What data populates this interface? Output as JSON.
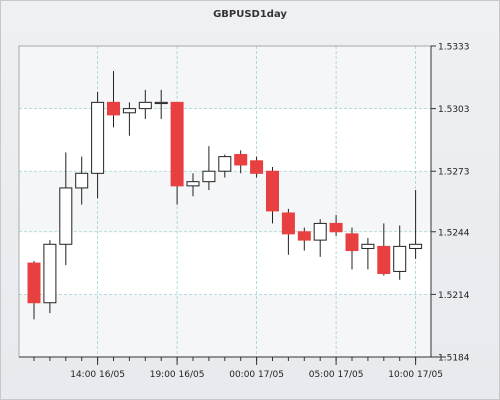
{
  "chart_data": {
    "type": "candlestick",
    "title": "GBPUSD1day",
    "xlabel": "",
    "ylabel": "",
    "ylim": [
      1.5184,
      1.5333
    ],
    "yticks": [
      "1.5184",
      "1.5214",
      "1.5244",
      "1.5273",
      "1.5303",
      "1.5333"
    ],
    "xticks": [
      "14:00 16/05",
      "19:00 16/05",
      "00:00 17/05",
      "05:00 17/05",
      "10:00 17/05"
    ],
    "grid": true,
    "colors": {
      "up_body": "#ffffff",
      "down_body": "#e84040",
      "outline": "#222222",
      "grid": "#9fd3d3"
    },
    "candles": [
      {
        "open": 1.5229,
        "high": 1.523,
        "low": 1.5202,
        "close": 1.521
      },
      {
        "open": 1.521,
        "high": 1.524,
        "low": 1.5205,
        "close": 1.5238
      },
      {
        "open": 1.5238,
        "high": 1.5282,
        "low": 1.5228,
        "close": 1.5265
      },
      {
        "open": 1.5265,
        "high": 1.528,
        "low": 1.5257,
        "close": 1.5272
      },
      {
        "open": 1.5272,
        "high": 1.5311,
        "low": 1.526,
        "close": 1.5306
      },
      {
        "open": 1.5306,
        "high": 1.5321,
        "low": 1.5294,
        "close": 1.53
      },
      {
        "open": 1.5301,
        "high": 1.5306,
        "low": 1.529,
        "close": 1.5303
      },
      {
        "open": 1.5303,
        "high": 1.5312,
        "low": 1.5298,
        "close": 1.5306
      },
      {
        "open": 1.5306,
        "high": 1.5312,
        "low": 1.5298,
        "close": 1.5306
      },
      {
        "open": 1.5306,
        "high": 1.5306,
        "low": 1.5257,
        "close": 1.5266
      },
      {
        "open": 1.5266,
        "high": 1.5272,
        "low": 1.5261,
        "close": 1.5268
      },
      {
        "open": 1.5268,
        "high": 1.5285,
        "low": 1.5264,
        "close": 1.5273
      },
      {
        "open": 1.5273,
        "high": 1.5281,
        "low": 1.527,
        "close": 1.528
      },
      {
        "open": 1.5281,
        "high": 1.5283,
        "low": 1.5272,
        "close": 1.5276
      },
      {
        "open": 1.5278,
        "high": 1.528,
        "low": 1.527,
        "close": 1.5272
      },
      {
        "open": 1.5273,
        "high": 1.5275,
        "low": 1.5248,
        "close": 1.5254
      },
      {
        "open": 1.5253,
        "high": 1.5255,
        "low": 1.5233,
        "close": 1.5243
      },
      {
        "open": 1.5244,
        "high": 1.5246,
        "low": 1.5235,
        "close": 1.524
      },
      {
        "open": 1.524,
        "high": 1.525,
        "low": 1.5232,
        "close": 1.5248
      },
      {
        "open": 1.5248,
        "high": 1.5252,
        "low": 1.5242,
        "close": 1.5244
      },
      {
        "open": 1.5243,
        "high": 1.5246,
        "low": 1.5226,
        "close": 1.5235
      },
      {
        "open": 1.5236,
        "high": 1.5241,
        "low": 1.5226,
        "close": 1.5238
      },
      {
        "open": 1.5237,
        "high": 1.5248,
        "low": 1.5223,
        "close": 1.5224
      },
      {
        "open": 1.5225,
        "high": 1.5247,
        "low": 1.5221,
        "close": 1.5237
      },
      {
        "open": 1.5236,
        "high": 1.5264,
        "low": 1.5231,
        "close": 1.5238
      }
    ]
  }
}
